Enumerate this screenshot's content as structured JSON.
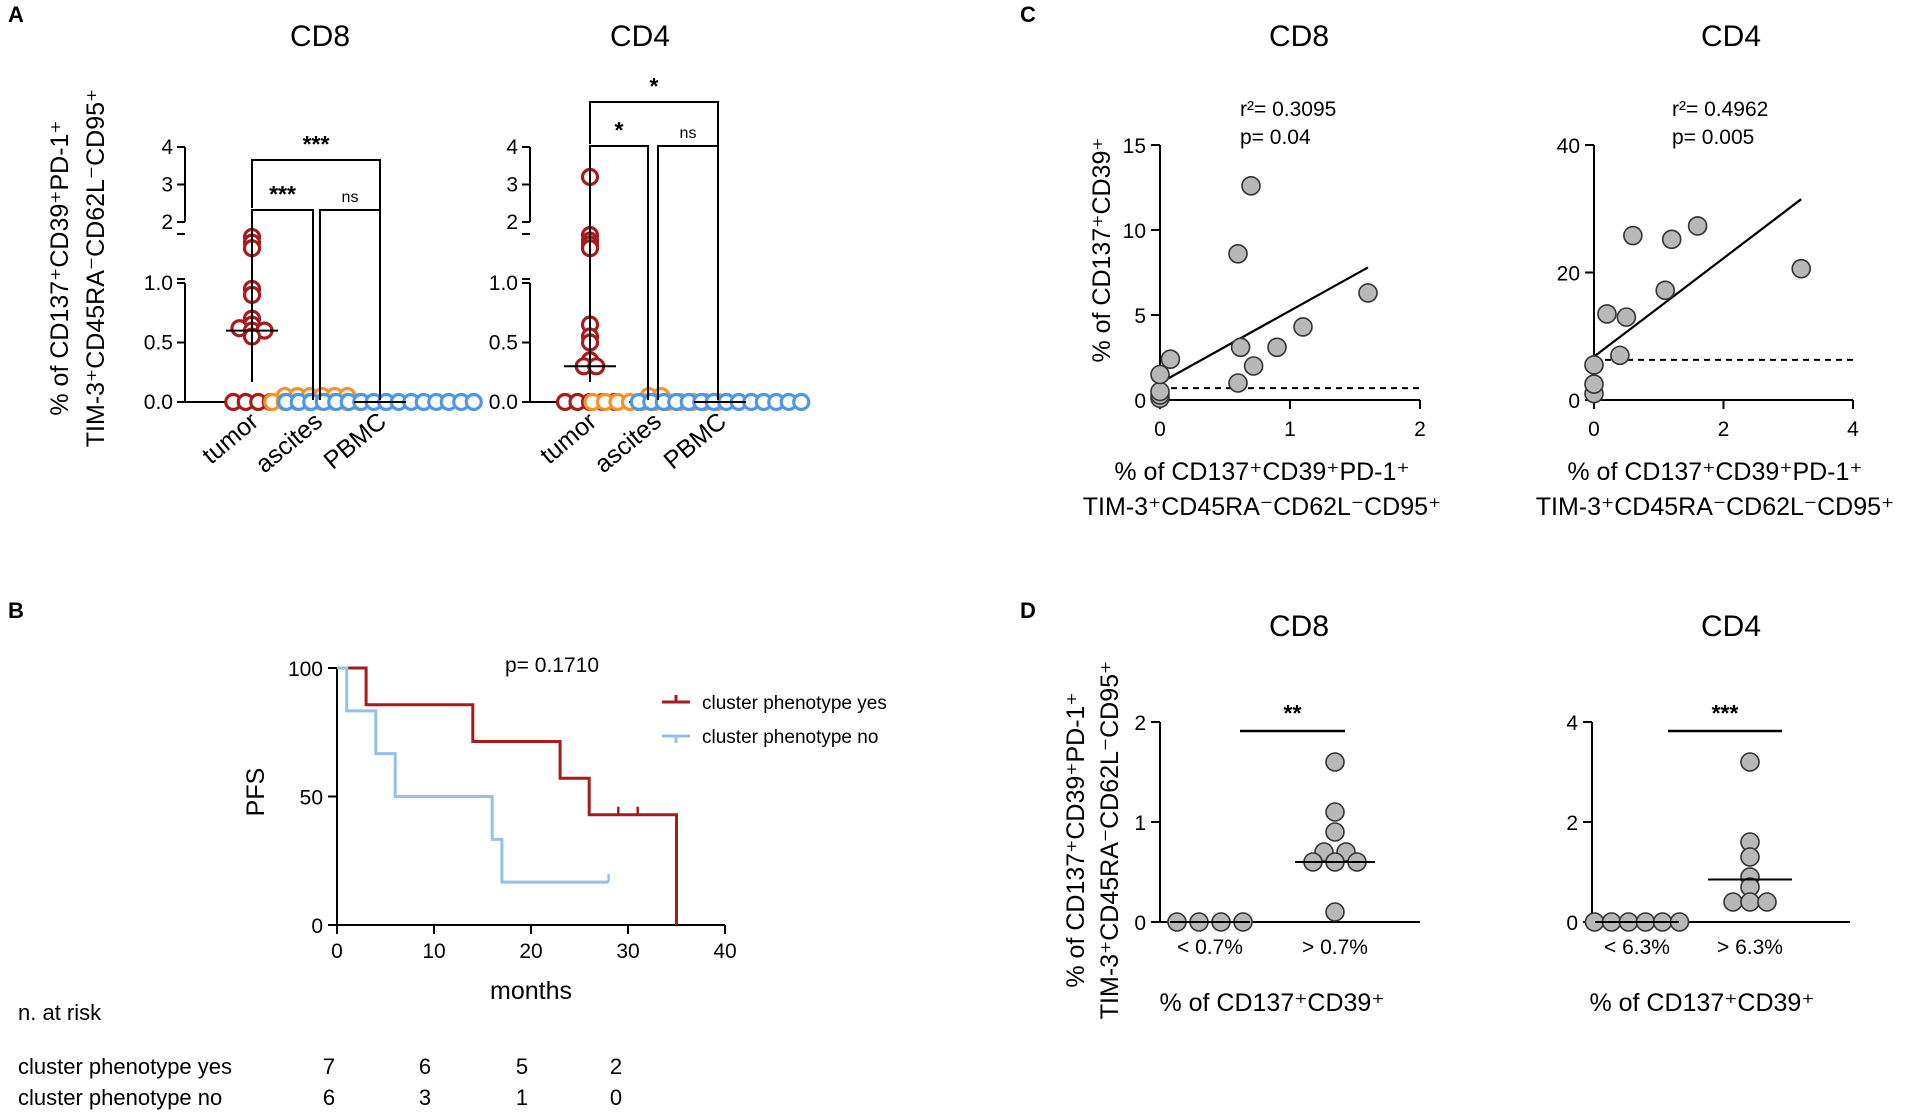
{
  "panel_letters": {
    "A": "A",
    "B": "B",
    "C": "C",
    "D": "D"
  },
  "colors": {
    "tumor": "#a61c1c",
    "ascites": "#f5922a",
    "pbmc": "#4f97e6",
    "km_yes": "#a61c1c",
    "km_no": "#93c1ee",
    "grey_fill": "#b8b8b8",
    "grey_edge": "#333333"
  },
  "panel_A": {
    "ylabel_line1": "% of CD137⁺CD39⁺PD-1⁺",
    "ylabel_line2": "TIM-3⁺CD45RA⁻CD62L⁻CD95⁺",
    "ytick_labels_low": [
      "0.0",
      "0.5",
      "1.0"
    ],
    "ytick_labels_high": [
      "2",
      "3",
      "4"
    ],
    "categories": [
      "tumor",
      "ascites",
      "PBMC"
    ]
  },
  "panel_B": {
    "ylabel": "PFS",
    "xlabel": "months",
    "ytick_labels": [
      "0",
      "50",
      "100"
    ],
    "xtick_labels": [
      "0",
      "10",
      "20",
      "30",
      "40"
    ],
    "pvalue": "p= 0.1710",
    "legend_yes": "cluster phenotype yes",
    "legend_no": "cluster phenotype no",
    "risk_title": "n. at risk",
    "risk_yes_label": "cluster phenotype yes",
    "risk_no_label": "cluster phenotype no",
    "risk_yes": [
      "7",
      "6",
      "5",
      "2"
    ],
    "risk_no": [
      "6",
      "3",
      "1",
      "0"
    ]
  },
  "panel_C": {
    "ylabel": "% of CD137⁺CD39⁺",
    "xlabel_line1": "% of CD137⁺CD39⁺PD-1⁺",
    "xlabel_line2": "TIM-3⁺CD45RA⁻CD62L⁻CD95⁺"
  },
  "panel_D": {
    "ylabel_line1": "% of CD137⁺CD39⁺PD-1⁺",
    "ylabel_line2": "TIM-3⁺CD45RA⁻CD62L⁻CD95⁺",
    "xlabel": "% of CD137⁺CD39⁺"
  },
  "chart_data": [
    {
      "id": "A_CD8",
      "type": "scatter",
      "title": "CD8",
      "categories": [
        "tumor",
        "ascites",
        "PBMC"
      ],
      "ylim": [
        0,
        4
      ],
      "axis_break": [
        1.0,
        2.0
      ],
      "series": [
        {
          "name": "tumor",
          "values": [
            1.6,
            1.45,
            1.3,
            0.95,
            0.9,
            0.7,
            0.65,
            0.62,
            0.6,
            0.6,
            0.55,
            0.0,
            0.0,
            0.0,
            0.0
          ],
          "median": 0.6
        },
        {
          "name": "ascites",
          "values": [
            0.05,
            0.05,
            0.05,
            0.05,
            0.05,
            0.05,
            0,
            0,
            0,
            0,
            0,
            0,
            0,
            0
          ],
          "median": 0.0
        },
        {
          "name": "PBMC",
          "values": [
            0,
            0,
            0,
            0,
            0,
            0,
            0,
            0,
            0,
            0,
            0,
            0,
            0,
            0,
            0,
            0
          ],
          "median": 0.0
        }
      ],
      "brackets": [
        {
          "from": "tumor",
          "to": "ascites",
          "label": "***"
        },
        {
          "from": "ascites",
          "to": "PBMC",
          "label": "ns"
        },
        {
          "from": "tumor",
          "to": "PBMC",
          "label": "***"
        }
      ]
    },
    {
      "id": "A_CD4",
      "type": "scatter",
      "title": "CD4",
      "categories": [
        "tumor",
        "ascites",
        "PBMC"
      ],
      "ylim": [
        0,
        4
      ],
      "axis_break": [
        1.0,
        2.0
      ],
      "series": [
        {
          "name": "tumor",
          "values": [
            3.2,
            1.65,
            1.5,
            1.4,
            1.3,
            0.65,
            0.55,
            0.5,
            0.35,
            0.3,
            0.3,
            0.0,
            0.0,
            0.0,
            0.0,
            0.0
          ],
          "median": 0.3
        },
        {
          "name": "ascites",
          "values": [
            0.05,
            0.05,
            0,
            0,
            0,
            0,
            0,
            0,
            0,
            0,
            0,
            0,
            0
          ],
          "median": 0.0
        },
        {
          "name": "PBMC",
          "values": [
            0,
            0,
            0,
            0,
            0,
            0,
            0,
            0,
            0,
            0,
            0,
            0,
            0,
            0
          ],
          "median": 0.0
        }
      ],
      "brackets": [
        {
          "from": "tumor",
          "to": "ascites",
          "label": "*"
        },
        {
          "from": "ascites",
          "to": "PBMC",
          "label": "ns"
        },
        {
          "from": "tumor",
          "to": "PBMC",
          "label": "*"
        }
      ]
    },
    {
      "id": "B_KM",
      "type": "line",
      "title": "",
      "xlabel": "months",
      "ylabel": "PFS",
      "xlim": [
        0,
        40
      ],
      "ylim": [
        0,
        100
      ],
      "series": [
        {
          "name": "cluster phenotype yes",
          "x": [
            0,
            3,
            3,
            14,
            14,
            23,
            23,
            26,
            26,
            35,
            35
          ],
          "y": [
            100,
            100,
            85.7,
            85.7,
            71.4,
            71.4,
            57.1,
            57.1,
            42.9,
            42.9,
            0
          ],
          "censored_x": [
            29,
            31
          ]
        },
        {
          "name": "cluster phenotype no",
          "x": [
            0,
            1,
            1,
            4,
            4,
            6,
            6,
            16,
            16,
            17,
            17,
            28
          ],
          "y": [
            100,
            100,
            83.3,
            83.3,
            66.7,
            66.7,
            50,
            50,
            33.3,
            33.3,
            16.7,
            16.7
          ],
          "censored_x": [
            28
          ]
        }
      ]
    },
    {
      "id": "C_CD8",
      "type": "scatter",
      "title": "CD8",
      "xlim": [
        0,
        2
      ],
      "ylim": [
        0,
        15
      ],
      "xticks": [
        "0",
        "1",
        "2"
      ],
      "yticks": [
        "0",
        "5",
        "10",
        "15"
      ],
      "x": [
        0.0,
        0.0,
        0.0,
        0.0,
        0.08,
        0.6,
        0.6,
        0.62,
        0.7,
        0.72,
        0.9,
        1.1,
        1.6
      ],
      "y": [
        0.1,
        0.3,
        0.5,
        1.5,
        2.4,
        8.6,
        1.0,
        3.1,
        12.6,
        2.0,
        3.1,
        4.3,
        6.3
      ],
      "regression": {
        "x0": 0.0,
        "y0": 1.0,
        "x1": 1.6,
        "y1": 7.8
      },
      "threshold": 0.7,
      "r2_label": "r²= 0.3095",
      "p_label": "p= 0.04"
    },
    {
      "id": "C_CD4",
      "type": "scatter",
      "title": "CD4",
      "xlim": [
        0,
        4
      ],
      "ylim": [
        0,
        40
      ],
      "xticks": [
        "0",
        "2",
        "4"
      ],
      "yticks": [
        "0",
        "20",
        "40"
      ],
      "x": [
        0.0,
        0.0,
        0.0,
        0.2,
        0.4,
        0.5,
        0.6,
        1.1,
        1.2,
        1.6,
        3.2
      ],
      "y": [
        1.0,
        2.5,
        5.5,
        13.5,
        7.0,
        13.0,
        25.8,
        17.2,
        25.2,
        27.3,
        20.6
      ],
      "regression": {
        "x0": 0.0,
        "y0": 6.8,
        "x1": 3.2,
        "y1": 31.5
      },
      "threshold": 6.3,
      "r2_label": "r²= 0.4962",
      "p_label": "p= 0.005"
    },
    {
      "id": "D_CD8",
      "type": "scatter",
      "title": "CD8",
      "categories": [
        "< 0.7%",
        "> 0.7%"
      ],
      "ylim": [
        0,
        2
      ],
      "yticks": [
        "0",
        "1",
        "2"
      ],
      "series": [
        {
          "name": "< 0.7%",
          "values": [
            0,
            0,
            0,
            0
          ],
          "median": 0
        },
        {
          "name": "> 0.7%",
          "values": [
            1.6,
            1.1,
            0.9,
            0.7,
            0.7,
            0.6,
            0.6,
            0.6,
            0.1
          ],
          "median": 0.6
        }
      ],
      "significance": "**"
    },
    {
      "id": "D_CD4",
      "type": "scatter",
      "title": "CD4",
      "categories": [
        "< 6.3%",
        "> 6.3%"
      ],
      "ylim": [
        0,
        4
      ],
      "yticks": [
        "0",
        "2",
        "4"
      ],
      "series": [
        {
          "name": "< 6.3%",
          "values": [
            0,
            0,
            0,
            0,
            0,
            0
          ],
          "median": 0
        },
        {
          "name": "> 6.3%",
          "values": [
            3.2,
            1.6,
            1.3,
            0.9,
            0.7,
            0.4,
            0.4,
            0.4
          ],
          "median": 0.85
        }
      ],
      "significance": "***"
    }
  ]
}
